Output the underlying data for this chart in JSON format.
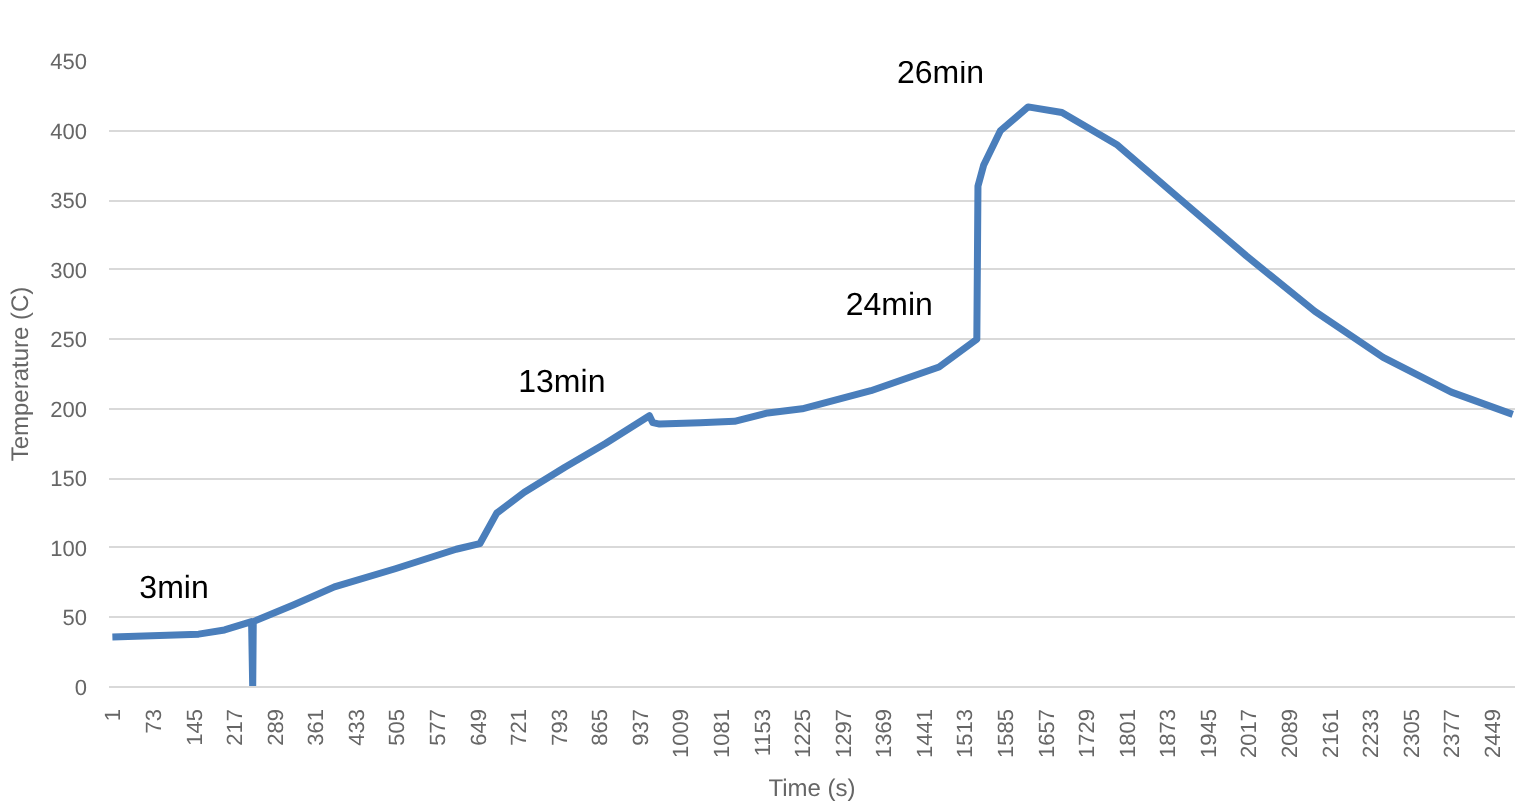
{
  "chart_data": {
    "type": "line",
    "xlabel": "Time (s)",
    "ylabel": "Temperature (C)",
    "x": [
      1,
      154,
      200,
      248,
      250,
      251,
      322,
      395,
      503,
      611,
      653,
      683,
      732,
      804,
      876,
      954,
      960,
      972,
      1044,
      1105,
      1164,
      1225,
      1347,
      1468,
      1535,
      1537,
      1547,
      1577,
      1626,
      1686,
      1783,
      1892,
      2013,
      2135,
      2256,
      2377,
      2486
    ],
    "series": [
      {
        "color": "#4a7ebb",
        "values": [
          36,
          38,
          41,
          47,
          0,
          47,
          59,
          72,
          85,
          99,
          103,
          125,
          140,
          158,
          175,
          195,
          190,
          189,
          190,
          191,
          197,
          200,
          213,
          230,
          250,
          360,
          375,
          400,
          417,
          413,
          390,
          352,
          310,
          270,
          237,
          212,
          196
        ]
      }
    ],
    "xlim": [
      -5,
      2490
    ],
    "xticks": [
      1,
      73,
      145,
      217,
      289,
      361,
      433,
      505,
      577,
      649,
      721,
      793,
      865,
      937,
      1009,
      1081,
      1153,
      1225,
      1297,
      1369,
      1441,
      1513,
      1585,
      1657,
      1729,
      1801,
      1873,
      1945,
      2017,
      2089,
      2161,
      2233,
      2305,
      2377,
      2449
    ],
    "ylim": [
      0,
      450
    ],
    "yticks": [
      0,
      50,
      100,
      150,
      200,
      250,
      300,
      350,
      400,
      450
    ],
    "grid": "y",
    "marker": "none",
    "line_style": "solid",
    "annotations": [
      {
        "text": "3min",
        "x": 250,
        "y": 47
      },
      {
        "text": "13min",
        "x": 954,
        "y": 195
      },
      {
        "text": "24min",
        "x": 1535,
        "y": 250
      },
      {
        "text": "26min",
        "x": 1626,
        "y": 417
      }
    ]
  }
}
